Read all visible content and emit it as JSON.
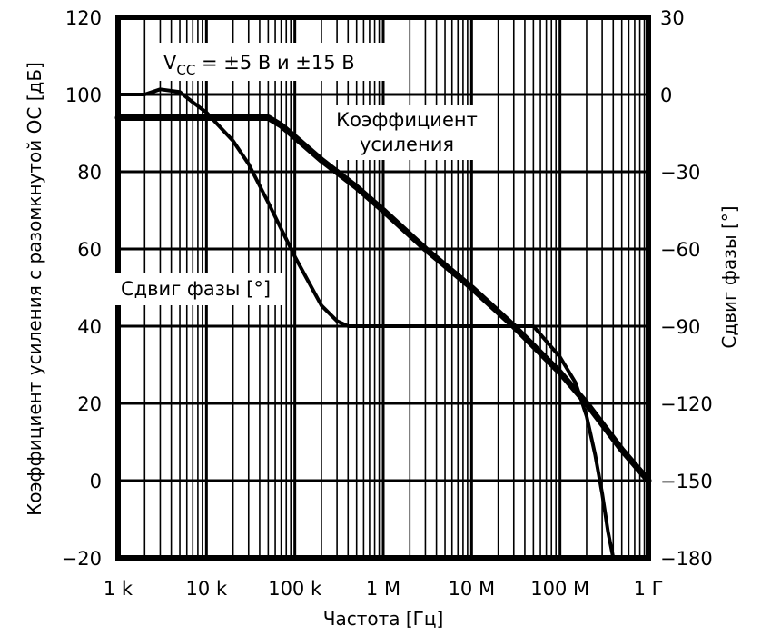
{
  "chart_data": {
    "type": "line",
    "x_scale": "log",
    "x_unit": "Hz",
    "xlabel": "Частота [Гц]",
    "ylabel_left": "Коэффициент усиления с разомкнутой ОС [дБ]",
    "ylabel_right": "Сдвиг фазы [°]",
    "xlim": [
      1000,
      1000000000
    ],
    "ylim_left": [
      -20,
      120
    ],
    "ylim_right": [
      -180,
      30
    ],
    "grid": true,
    "x_ticks": [
      {
        "value": 1000,
        "label": "1 k"
      },
      {
        "value": 10000,
        "label": "10 k"
      },
      {
        "value": 100000,
        "label": "100 k"
      },
      {
        "value": 1000000,
        "label": "1 M"
      },
      {
        "value": 10000000,
        "label": "10 M"
      },
      {
        "value": 100000000,
        "label": "100 M"
      },
      {
        "value": 1000000000,
        "label": "1 Г"
      }
    ],
    "y_ticks_left": [
      {
        "value": 120,
        "label": "120"
      },
      {
        "value": 100,
        "label": "100"
      },
      {
        "value": 80,
        "label": "80"
      },
      {
        "value": 60,
        "label": "60"
      },
      {
        "value": 40,
        "label": "40"
      },
      {
        "value": 20,
        "label": "20"
      },
      {
        "value": 0,
        "label": "0"
      },
      {
        "value": -20,
        "label": "−20"
      }
    ],
    "y_ticks_right": [
      {
        "value": 30,
        "label": "30"
      },
      {
        "value": 0,
        "label": "0"
      },
      {
        "value": -30,
        "label": "−30"
      },
      {
        "value": -60,
        "label": "−60"
      },
      {
        "value": -90,
        "label": "−90"
      },
      {
        "value": -120,
        "label": "−120"
      },
      {
        "value": -150,
        "label": "−150"
      },
      {
        "value": -180,
        "label": "−180"
      }
    ],
    "annotations": {
      "condition_prefix": "V",
      "condition_subscript": "CC",
      "condition_rest": " = ±5 В и  ±15 В",
      "gain_label_line1": "Коэффициент",
      "gain_label_line2": "усиления",
      "phase_label": "Сдвиг фазы [°]"
    },
    "series": [
      {
        "name": "Коэффициент усиления",
        "axis": "left",
        "x": [
          1000,
          3000,
          10000,
          30000,
          50000,
          70000,
          100000,
          200000,
          500000,
          1000000,
          3000000,
          10000000,
          30000000,
          100000000,
          200000000,
          500000000,
          1000000000
        ],
        "y": [
          94,
          94,
          94,
          94,
          94,
          92,
          89,
          83,
          76,
          70,
          60,
          50,
          40,
          28,
          20,
          8,
          0
        ]
      },
      {
        "name": "Сдвиг фазы",
        "axis": "right",
        "x": [
          1000,
          2000,
          3000,
          5000,
          7000,
          10000,
          20000,
          30000,
          50000,
          100000,
          200000,
          300000,
          400000,
          1000000,
          10000000,
          50000000,
          100000000,
          150000000,
          200000000,
          250000000,
          300000000,
          350000000,
          400000000
        ],
        "y": [
          0,
          0,
          2,
          1,
          -3,
          -7,
          -18,
          -27,
          -42,
          -63,
          -82,
          -88,
          -90,
          -90,
          -90,
          -90,
          -102,
          -112,
          -125,
          -140,
          -155,
          -170,
          -180
        ]
      }
    ]
  }
}
